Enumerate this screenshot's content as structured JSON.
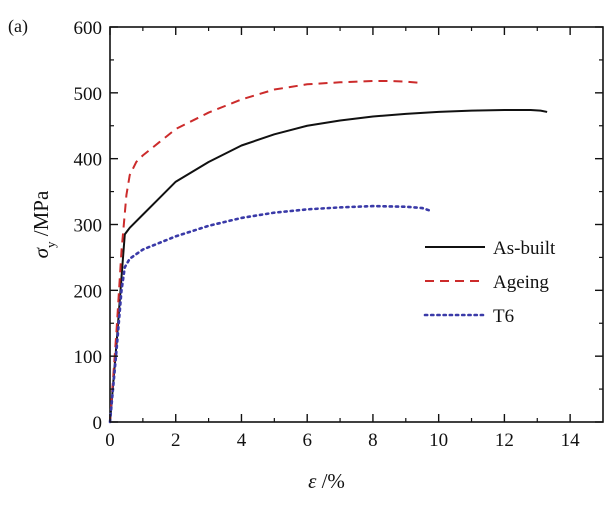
{
  "panel_label": "(a)",
  "chart_data": {
    "type": "line",
    "title": "",
    "xlabel": {
      "symbol": "ε",
      "unit": " /%"
    },
    "ylabel": {
      "symbol": "σ",
      "subscript": "y",
      "unit": " /MPa"
    },
    "xlim": [
      0,
      15
    ],
    "ylim": [
      0,
      600
    ],
    "xticks": [
      0,
      2,
      4,
      6,
      8,
      10,
      12,
      14
    ],
    "yticks": [
      0,
      100,
      200,
      300,
      400,
      500,
      600
    ],
    "grid": false,
    "legend": {
      "position": "center-right"
    },
    "series": [
      {
        "name": "As-built",
        "color": "#111111",
        "dash": "solid",
        "points": [
          [
            0,
            0
          ],
          [
            0.2,
            120
          ],
          [
            0.35,
            220
          ],
          [
            0.45,
            285
          ],
          [
            0.6,
            295
          ],
          [
            1.0,
            315
          ],
          [
            1.5,
            340
          ],
          [
            2,
            365
          ],
          [
            3,
            395
          ],
          [
            4,
            420
          ],
          [
            5,
            437
          ],
          [
            6,
            450
          ],
          [
            7,
            458
          ],
          [
            8,
            464
          ],
          [
            9,
            468
          ],
          [
            10,
            471
          ],
          [
            11,
            473
          ],
          [
            12,
            474
          ],
          [
            12.8,
            474
          ],
          [
            13.1,
            473
          ],
          [
            13.3,
            471
          ]
        ]
      },
      {
        "name": "Ageing",
        "color": "#cc2b2b",
        "dash": "dashed",
        "points": [
          [
            0,
            0
          ],
          [
            0.2,
            140
          ],
          [
            0.35,
            260
          ],
          [
            0.5,
            345
          ],
          [
            0.6,
            375
          ],
          [
            0.8,
            395
          ],
          [
            1.0,
            405
          ],
          [
            1.5,
            425
          ],
          [
            2,
            445
          ],
          [
            3,
            470
          ],
          [
            4,
            490
          ],
          [
            5,
            505
          ],
          [
            6,
            513
          ],
          [
            7,
            516
          ],
          [
            8,
            518
          ],
          [
            8.5,
            518
          ],
          [
            9,
            517
          ],
          [
            9.5,
            515
          ]
        ]
      },
      {
        "name": "T6",
        "color": "#3a3aa8",
        "dash": "dotted",
        "points": [
          [
            0,
            0
          ],
          [
            0.2,
            110
          ],
          [
            0.35,
            200
          ],
          [
            0.45,
            235
          ],
          [
            0.6,
            248
          ],
          [
            1.0,
            262
          ],
          [
            1.5,
            272
          ],
          [
            2,
            282
          ],
          [
            3,
            298
          ],
          [
            4,
            310
          ],
          [
            5,
            318
          ],
          [
            6,
            323
          ],
          [
            7,
            326
          ],
          [
            8,
            328
          ],
          [
            9,
            327
          ],
          [
            9.5,
            325
          ],
          [
            9.8,
            320
          ]
        ]
      }
    ]
  }
}
